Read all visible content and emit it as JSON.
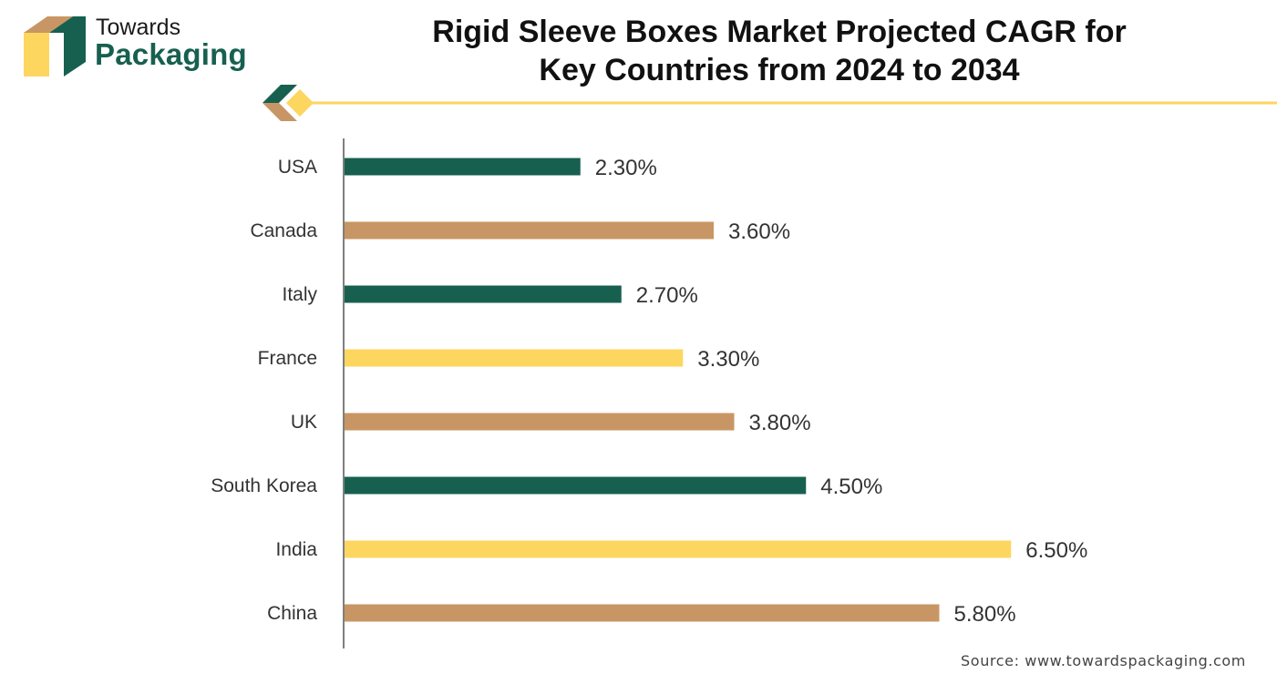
{
  "logo": {
    "line1": "Towards",
    "line2": "Packaging"
  },
  "title_line1": "Rigid Sleeve Boxes Market Projected CAGR for",
  "title_line2": "Key Countries from 2024 to 2034",
  "source": "Source: www.towardspackaging.com",
  "colors": {
    "green": "#17604f",
    "tan": "#c89664",
    "yellow": "#fdd660",
    "axis": "#555555"
  },
  "chart_data": {
    "type": "bar",
    "orientation": "horizontal",
    "title": "Rigid Sleeve Boxes Market Projected CAGR for Key Countries from 2024 to 2034",
    "xlabel": "",
    "ylabel": "",
    "unit": "%",
    "categories": [
      "USA",
      "Canada",
      "Italy",
      "France",
      "UK",
      "South Korea",
      "India",
      "China"
    ],
    "values": [
      2.3,
      3.6,
      2.7,
      3.3,
      3.8,
      4.5,
      6.5,
      5.8
    ],
    "value_labels": [
      "2.30%",
      "3.60%",
      "2.70%",
      "3.30%",
      "3.80%",
      "4.50%",
      "6.50%",
      "5.80%"
    ],
    "bar_colors": [
      "#17604f",
      "#c89664",
      "#17604f",
      "#fdd660",
      "#c89664",
      "#17604f",
      "#fdd660",
      "#c89664"
    ],
    "xlim": [
      0,
      6.5
    ],
    "grid": false,
    "legend": "none"
  }
}
